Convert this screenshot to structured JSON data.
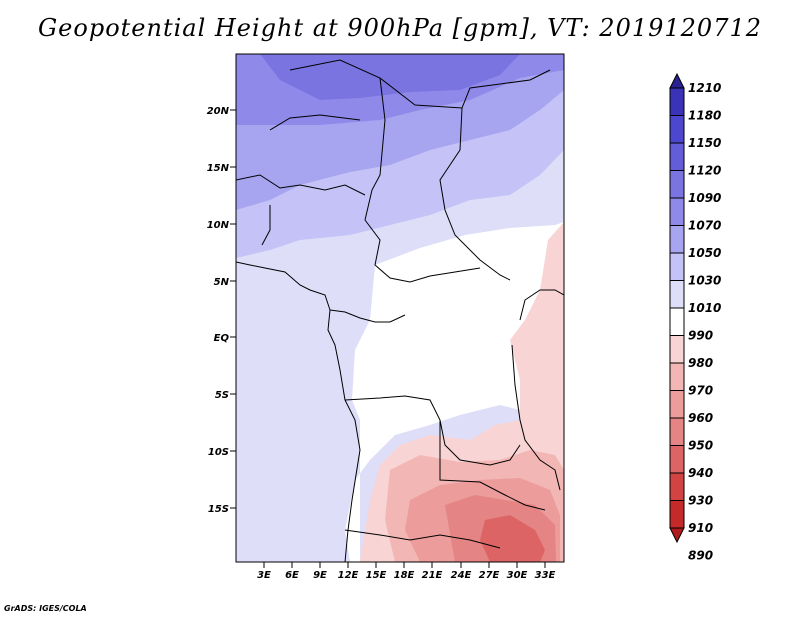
{
  "title": "Geopotential Height at 900hPa [gpm], VT: 2019120712",
  "credit": "GrADS: IGES/COLA",
  "map": {
    "lat_labels": [
      "20N",
      "15N",
      "10N",
      "5N",
      "EQ",
      "5S",
      "10S",
      "15S"
    ],
    "lon_labels": [
      "3E",
      "6E",
      "9E",
      "12E",
      "15E",
      "18E",
      "21E",
      "24E",
      "27E",
      "30E",
      "33E"
    ],
    "lon_range": [
      0,
      35
    ],
    "lat_range": [
      -19.5,
      24.5
    ]
  },
  "colorbar": {
    "levels": [
      "1210",
      "1180",
      "1150",
      "1120",
      "1090",
      "1070",
      "1050",
      "1030",
      "1010",
      "990",
      "980",
      "970",
      "960",
      "950",
      "940",
      "930",
      "910",
      "890"
    ],
    "colors": [
      "#2a2290",
      "#3a33b8",
      "#4d47cf",
      "#635dd9",
      "#7a74e0",
      "#8f8aea",
      "#a7a4f0",
      "#c4c2f6",
      "#dedef8",
      "#ffffff",
      "#f8d4d4",
      "#f2b6b4",
      "#ec9c9b",
      "#e48484",
      "#dc6464",
      "#d24444",
      "#c42a2a",
      "#b01a1a"
    ]
  }
}
